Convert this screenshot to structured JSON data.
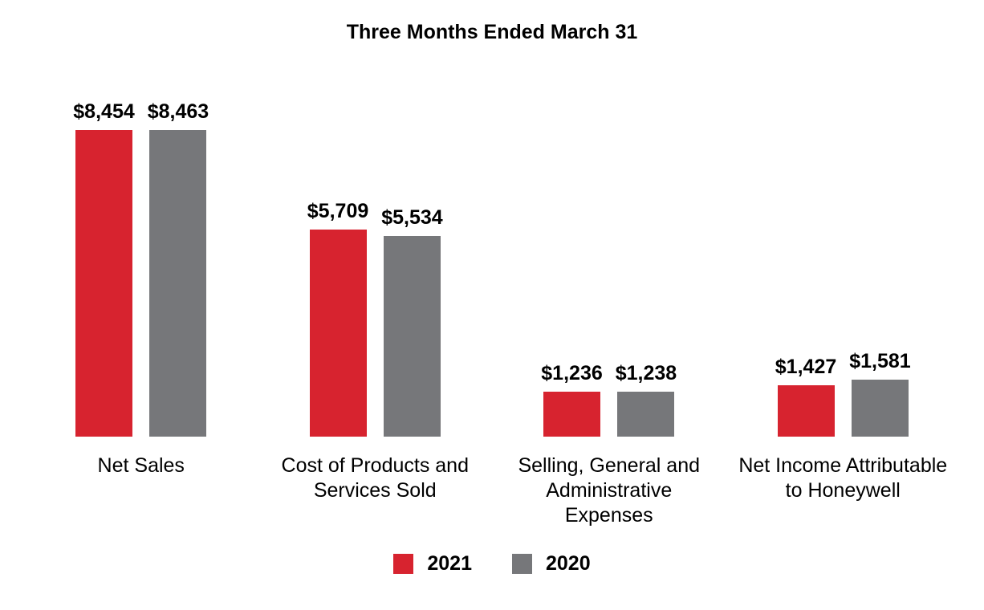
{
  "chart_data": {
    "type": "bar",
    "title": "Three Months Ended March 31",
    "categories": [
      "Net Sales",
      "Cost of Products and Services Sold",
      "Selling, General and Administrative Expenses",
      "Net Income Attributable to Honeywell"
    ],
    "category_label_lines": [
      [
        "Net Sales"
      ],
      [
        "Cost of Products and",
        "Services Sold"
      ],
      [
        "Selling, General and",
        "Administrative",
        "Expenses"
      ],
      [
        "Net Income Attributable",
        "to Honeywell"
      ]
    ],
    "series": [
      {
        "name": "2021",
        "color": "#D7232F",
        "values": [
          8454,
          5709,
          1236,
          1427
        ],
        "labels": [
          "$8,454",
          "$5,709",
          "$1,236",
          "$1,427"
        ]
      },
      {
        "name": "2020",
        "color": "#76777A",
        "values": [
          8463,
          5534,
          1238,
          1581
        ],
        "labels": [
          "$8,463",
          "$5,534",
          "$1,238",
          "$1,581"
        ]
      }
    ],
    "value_prefix": "$",
    "grid": false,
    "axes_hidden": true,
    "legend_position": "bottom",
    "ylim": [
      0,
      8463
    ]
  }
}
